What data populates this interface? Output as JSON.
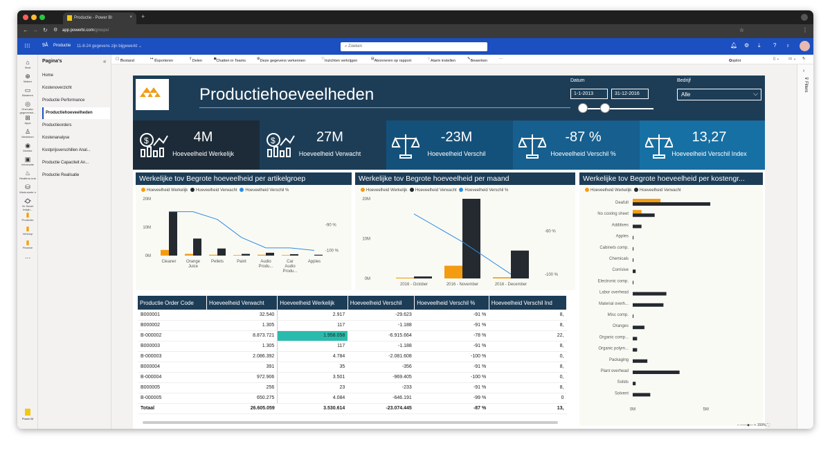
{
  "browser": {
    "tab_title": "Productie - Power BI",
    "tab_close": "×",
    "new_tab": "+",
    "url_host": "app.powerbi.com",
    "url_path": "/groups/"
  },
  "powerbi": {
    "workspace": "Productie",
    "updated": "11-8-24 gegevens zijn bijgewerkt",
    "search_placeholder": "Zoeken"
  },
  "rail": [
    {
      "icon": "⌂",
      "label": "Start"
    },
    {
      "icon": "⊕",
      "label": "Maken"
    },
    {
      "icon": "▭",
      "label": "Bladeren"
    },
    {
      "icon": "◎",
      "label": "OneLake-gegevensh..."
    },
    {
      "icon": "⊞",
      "label": "Apps"
    },
    {
      "icon": "♙",
      "label": "Metrieken"
    },
    {
      "icon": "◉",
      "label": "Monitor"
    },
    {
      "icon": "▣",
      "label": "Informatie"
    },
    {
      "icon": "♨",
      "label": "Realtime-hub"
    },
    {
      "icon": "⛁",
      "label": "Werkruimte n"
    },
    {
      "icon": "⛮",
      "label": "9x Smart Insigh..."
    },
    {
      "icon": "▮",
      "label": "Productie"
    },
    {
      "icon": "▮",
      "label": "Verkoop"
    },
    {
      "icon": "▮",
      "label": "Finance"
    },
    {
      "icon": "…",
      "label": ""
    }
  ],
  "rail_footer": "Power BI",
  "pages": {
    "title": "Pagina's",
    "collapse": "«",
    "items": [
      "Home",
      "Kostenoverzicht",
      "Productie Performance",
      "Productiehoeveelheden",
      "Productieorders",
      "Kostenanalyse",
      "Kostprijsverschillen Anal...",
      "Productie Capaciteit An...",
      "Productie Realisatie"
    ]
  },
  "toolbar": {
    "file": "Bestand",
    "export": "Exporteren",
    "share": "Delen",
    "teams": "Chatten in Teams",
    "explore": "Deze gegevens verkennen",
    "insights": "Inzichten verkrijgen",
    "subscribe": "Abonneren op rapport",
    "alert": "Alarm instellen",
    "edit": "Bewerken",
    "more": "···",
    "copilot": "Copilot"
  },
  "filters_label": "Filters",
  "zoom": "159%",
  "report": {
    "title": "Productiehoeveelheden",
    "date_label": "Datum",
    "date_from": "1-1-2013",
    "date_to": "31-12-2016",
    "company_label": "Bedrijf",
    "company_value": "Alle"
  },
  "kpis": [
    {
      "value": "4M",
      "label": "Hoeveelheid Werkelijk",
      "icon": "money-chart-icon",
      "bg": "#1d2b38"
    },
    {
      "value": "27M",
      "label": "Hoeveelheid Verwacht",
      "icon": "money-chart-icon",
      "bg": "#1d3d57"
    },
    {
      "value": "-23M",
      "label": "Hoeveelheid Verschil",
      "icon": "scale-icon",
      "bg": "#14517a"
    },
    {
      "value": "-87 %",
      "label": "Hoeveelheid Verschil %",
      "icon": "scale-icon",
      "bg": "#165f8e"
    },
    {
      "value": "13,27",
      "label": "Hoeveelheid Verschil Index",
      "icon": "scale-icon",
      "bg": "#1670a4"
    }
  ],
  "colors": {
    "orange": "#f39c12",
    "dark": "#252a30",
    "blue": "#2b8de0",
    "teal": "#2bbbad",
    "navy": "#1d3d57"
  },
  "chart_data": [
    {
      "type": "bar",
      "title": "Werkelijke tov Begrote hoeveelheid per artikelgroep",
      "legend": [
        "Hoeveelheid Werkelijk",
        "Hoeveelheid Verwacht",
        "Hoeveelheid Verschil %"
      ],
      "categories": [
        [
          "Cleaner"
        ],
        [
          "Orange",
          "Juice"
        ],
        [
          "Pellets"
        ],
        [
          "Paint"
        ],
        [
          "Audio",
          "Produ..."
        ],
        [
          "Car",
          "Audio",
          "Produ..."
        ],
        [
          "Apples"
        ]
      ],
      "series": [
        {
          "name": "Hoeveelheid Werkelijk",
          "values": [
            2.0,
            0.6,
            0.3,
            0.2,
            0.3,
            0.2,
            0.0
          ]
        },
        {
          "name": "Hoeveelheid Verwacht",
          "values": [
            15.5,
            6.0,
            2.5,
            0.6,
            1.0,
            0.5,
            0.3
          ]
        },
        {
          "name": "Hoeveelheid Verschil %",
          "values": [
            -85,
            -85,
            -88,
            -95,
            -99,
            -99,
            -100
          ]
        }
      ],
      "y_ticks": [
        "20M",
        "10M",
        "0M"
      ],
      "y2_ticks": [
        "-90 %",
        "-100 %"
      ],
      "ylim": [
        0,
        20
      ],
      "y2lim": [
        -102,
        -80
      ]
    },
    {
      "type": "bar",
      "title": "Werkelijke tov Begrote hoeveelheid per maand",
      "legend": [
        "Hoeveelheid Werkelijk",
        "Hoeveelheid Verwacht",
        "Hoeveelheid Verschil %"
      ],
      "categories": [
        [
          "2016 - October"
        ],
        [
          "2016 - November"
        ],
        [
          "2016 - December"
        ]
      ],
      "series": [
        {
          "name": "Hoeveelheid Werkelijk",
          "values": [
            0.2,
            3.2,
            0.3
          ]
        },
        {
          "name": "Hoeveelheid Verwacht",
          "values": [
            0.5,
            20.0,
            7.0
          ]
        },
        {
          "name": "Hoeveelheid Verschil %",
          "values": [
            -72,
            -85,
            -100
          ]
        }
      ],
      "y_ticks": [
        "20M",
        "10M",
        "0M"
      ],
      "y2_ticks": [
        "-80 %",
        "-100 %"
      ],
      "ylim": [
        0,
        20
      ],
      "y2lim": [
        -102,
        -65
      ]
    },
    {
      "type": "bar",
      "orientation": "horizontal",
      "title": "Werkelijke tov Begrote hoeveelheid per kostengr...",
      "legend": [
        "Hoeveelheid Werkelijk",
        "Hoeveelheid Verwacht"
      ],
      "categories": [
        "Deafult",
        "No costing sheet",
        "Additives",
        "Apples",
        "Cabinets comp.",
        "Chemicals",
        "Corrisive",
        "Electronic comp.",
        "Labor overhead",
        "Material overh...",
        "Misc comp.",
        "Oranges",
        "Organic comp...",
        "Organic polym...",
        "Packaging",
        "Plant overhead",
        "Solids",
        "Solvent"
      ],
      "series": [
        {
          "name": "Hoeveelheid Werkelijk",
          "values": [
            1.9,
            0.6,
            0,
            0,
            0,
            0,
            0,
            0,
            0,
            0,
            0,
            0,
            0,
            0,
            0,
            0,
            0,
            0
          ]
        },
        {
          "name": "Hoeveelheid Verwacht",
          "values": [
            5.3,
            1.5,
            0.6,
            0.05,
            0.05,
            0.05,
            0.2,
            0.05,
            2.3,
            2.1,
            0.05,
            0.8,
            0.3,
            0.3,
            1.0,
            3.2,
            0.2,
            1.2
          ]
        }
      ],
      "x_ticks": [
        "0M",
        "5M"
      ],
      "xlim": [
        0,
        7
      ]
    }
  ],
  "table": {
    "columns": [
      "Productie Order Code",
      "Hoeveelheid Verwacht",
      "Hoeveelheid Werkelijk",
      "Hoeveelheid Verschil",
      "Hoeveelheid Verschil %",
      "Hoeveelheid Verschil Ind"
    ],
    "rows": [
      [
        "B000001",
        "32.540",
        "2.917",
        "-29.623",
        "-91 %",
        "8,"
      ],
      [
        "B000002",
        "1.305",
        "117",
        "-1.188",
        "-91 %",
        "8,"
      ],
      [
        "B-000002",
        "8.873.721",
        "1.958.058",
        "-6.915.664",
        "-78 %",
        "22,"
      ],
      [
        "B000003",
        "1.305",
        "117",
        "-1.188",
        "-91 %",
        "8,"
      ],
      [
        "B-000003",
        "2.086.392",
        "4.784",
        "-2.081.608",
        "-100 %",
        "0,"
      ],
      [
        "B000004",
        "391",
        "35",
        "-356",
        "-91 %",
        "8,"
      ],
      [
        "B-000004",
        "972.906",
        "3.501",
        "-969.405",
        "-100 %",
        "0,"
      ],
      [
        "B000005",
        "256",
        "23",
        "-233",
        "-91 %",
        "8,"
      ],
      [
        "B-000005",
        "650.275",
        "4.084",
        "-646.191",
        "-99 %",
        "0"
      ]
    ],
    "total": [
      "Totaal",
      "26.605.059",
      "3.530.614",
      "-23.074.445",
      "-87 %",
      "13,"
    ]
  }
}
